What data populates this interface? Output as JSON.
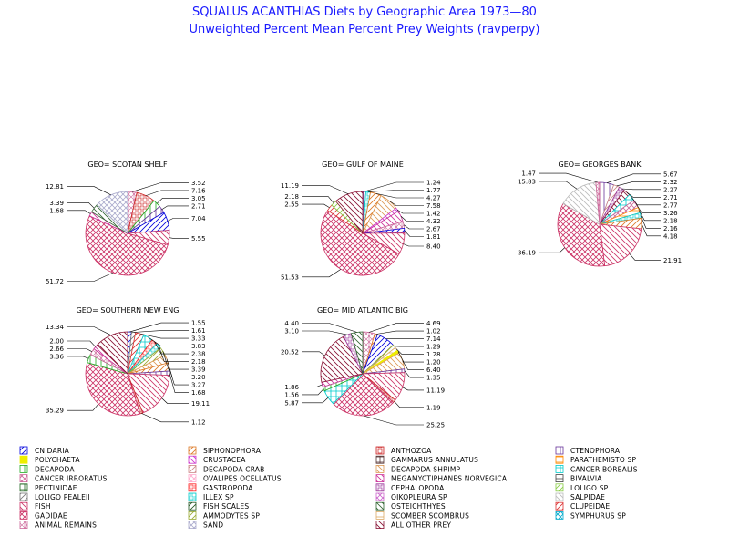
{
  "chart_data": {
    "type": "pie",
    "title": "SQUALUS ACANTHIAS Diets by Geographic Area 1973—80",
    "subtitle": "Unweighted Percent Mean Percent Prey  Weights (ravperpy)",
    "pies": [
      {
        "label": "GEO= SCOTAN SHELF",
        "slices": [
          {
            "cat": "ANIMAL REMAINS",
            "value": 3.52
          },
          {
            "cat": "ANTHOZOA",
            "value": 7.16
          },
          {
            "cat": "DECAPODA",
            "value": 3.05
          },
          {
            "cat": "CTENOPHORA",
            "value": 2.71
          },
          {
            "cat": "CNIDARIA",
            "value": 7.04
          },
          {
            "cat": "FISH",
            "value": 5.55
          },
          {
            "cat": "GADIDAE",
            "value": 51.72
          },
          {
            "cat": "MEGAMYCTIPHANES NORVEGICA",
            "value": 1.68
          },
          {
            "cat": "OSTEICHTHYES",
            "value": 3.39
          },
          {
            "cat": "SAND",
            "value": 12.81
          }
        ],
        "labels": [
          "3.52",
          "7.16",
          "3.05",
          "2.71",
          "7.04",
          "5.55",
          "51.72",
          "1.68",
          "3.39",
          "12.81"
        ]
      },
      {
        "label": "GEO= GULF OF MAINE",
        "slices": [
          {
            "cat": "CTENOPHORA",
            "value": 1.24
          },
          {
            "cat": "ILLEX SP",
            "value": 1.77
          },
          {
            "cat": "SIPHONOPHORA",
            "value": 4.27
          },
          {
            "cat": "DECAPODA SHRIMP",
            "value": 7.58
          },
          {
            "cat": "CRUSTACEA",
            "value": 1.42
          },
          {
            "cat": "MEGAMYCTIPHANES NORVEGICA",
            "value": 4.32
          },
          {
            "cat": "ANIMAL REMAINS",
            "value": 2.67
          },
          {
            "cat": "CNIDARIA",
            "value": 1.81
          },
          {
            "cat": "FISH",
            "value": 8.4
          },
          {
            "cat": "GADIDAE",
            "value": 51.53
          },
          {
            "cat": "CLUPEIDAE",
            "value": 2.55
          },
          {
            "cat": "LOLIGO SP",
            "value": 2.18
          },
          {
            "cat": "ALL OTHER PREY",
            "value": 11.19
          }
        ],
        "labels": [
          "1.24",
          "1.77",
          "4.27",
          "7.58",
          "1.42",
          "4.32",
          "2.67",
          "1.81",
          "8.40",
          "51.53",
          "2.55",
          "2.18",
          "11.19"
        ]
      },
      {
        "label": "GEO= GEORGES BANK",
        "slices": [
          {
            "cat": "CTENOPHORA",
            "value": 5.67
          },
          {
            "cat": "DECAPODA CRAB",
            "value": 2.32
          },
          {
            "cat": "CEPHALOPODA",
            "value": 2.27
          },
          {
            "cat": "ALL OTHER PREY",
            "value": 2.71
          },
          {
            "cat": "CANCER BOREALIS",
            "value": 2.77
          },
          {
            "cat": "CANCER IRRORATUS",
            "value": 3.26
          },
          {
            "cat": "PARATHEMISTO SP",
            "value": 2.18
          },
          {
            "cat": "ILLEX SP",
            "value": 2.16
          },
          {
            "cat": "SIPHONOPHORA",
            "value": 4.18
          },
          {
            "cat": "FISH",
            "value": 21.91
          },
          {
            "cat": "GADIDAE",
            "value": 36.19
          },
          {
            "cat": "SALPIDAE",
            "value": 15.83
          },
          {
            "cat": "ANIMAL REMAINS",
            "value": 1.47
          }
        ],
        "labels": [
          "5.67",
          "2.32",
          "2.27",
          "2.71",
          "2.77",
          "3.26",
          "2.18",
          "2.16",
          "4.18",
          "21.91",
          "36.19",
          "15.83",
          "1.47"
        ]
      },
      {
        "label": "GEO= SOUTHERN NEW ENG",
        "slices": [
          {
            "cat": "CNIDARIA",
            "value": 1.55
          },
          {
            "cat": "LOLIGO PEALEII",
            "value": 1.61
          },
          {
            "cat": "CLUPEIDAE",
            "value": 3.33
          },
          {
            "cat": "CANCER BOREALIS",
            "value": 3.83
          },
          {
            "cat": "GASTROPODA",
            "value": 2.38
          },
          {
            "cat": "ILLEX SP",
            "value": 2.18
          },
          {
            "cat": "AMMODYTES SP",
            "value": 3.39
          },
          {
            "cat": "DECAPODA SHRIMP",
            "value": 3.2
          },
          {
            "cat": "SIPHONOPHORA",
            "value": 3.27
          },
          {
            "cat": "CTENOPHORA",
            "value": 1.68
          },
          {
            "cat": "FISH",
            "value": 19.11
          },
          {
            "cat": "ANTHOZOA",
            "value": 1.12
          },
          {
            "cat": "GADIDAE",
            "value": 35.29
          },
          {
            "cat": "DECAPODA",
            "value": 3.36
          },
          {
            "cat": "ANIMAL REMAINS",
            "value": 2.66
          },
          {
            "cat": "MEGAMYCTIPHANES NORVEGICA",
            "value": 2.0
          },
          {
            "cat": "ALL OTHER PREY",
            "value": 13.34
          }
        ],
        "labels": [
          "1.55",
          "1.61",
          "3.33",
          "3.83",
          "2.38",
          "2.18",
          "3.39",
          "3.20",
          "3.27",
          "1.68",
          "19.11",
          "1.12",
          "35.29",
          "3.36",
          "2.66",
          "2.00",
          "13.34"
        ]
      },
      {
        "label": "GEO= MID ATLANTIC BIG",
        "slices": [
          {
            "cat": "ANIMAL REMAINS",
            "value": 4.69
          },
          {
            "cat": "SIPHONOPHORA",
            "value": 1.02
          },
          {
            "cat": "CNIDARIA",
            "value": 7.14
          },
          {
            "cat": "AMMODYTES SP",
            "value": 1.29
          },
          {
            "cat": "SCOMBER SCOMBRUS",
            "value": 1.28
          },
          {
            "cat": "POLYCHAETA",
            "value": 1.2
          },
          {
            "cat": "DECAPODA SHRIMP",
            "value": 6.4
          },
          {
            "cat": "CTENOPHORA",
            "value": 1.35
          },
          {
            "cat": "FISH",
            "value": 11.19
          },
          {
            "cat": "ANTHOZOA",
            "value": 1.19
          },
          {
            "cat": "GADIDAE",
            "value": 25.25
          },
          {
            "cat": "CANCER BOREALIS",
            "value": 5.87
          },
          {
            "cat": "DECAPODA",
            "value": 1.56
          },
          {
            "cat": "MEGAMYCTIPHANES NORVEGICA",
            "value": 1.86
          },
          {
            "cat": "ALL OTHER PREY",
            "value": 20.52
          },
          {
            "cat": "CEPHALOPODA",
            "value": 3.1
          },
          {
            "cat": "OSTEICHTHYES",
            "value": 4.4
          }
        ],
        "labels": [
          "4.69",
          "1.02",
          "7.14",
          "1.29",
          "1.28",
          "1.20",
          "6.40",
          "1.35",
          "11.19",
          "1.19",
          "25.25",
          "5.87",
          "1.56",
          "1.86",
          "20.52",
          "3.10",
          "4.40"
        ]
      }
    ],
    "legend": [
      {
        "name": "CNIDARIA",
        "color": "#0000dd",
        "pattern": "diag1"
      },
      {
        "name": "SIPHONOPHORA",
        "color": "#dd7722",
        "pattern": "diag1"
      },
      {
        "name": "ANTHOZOA",
        "color": "#cc2222",
        "pattern": "box"
      },
      {
        "name": "CTENOPHORA",
        "color": "#663399",
        "pattern": "vert"
      },
      {
        "name": "POLYCHAETA",
        "color": "#eeee00",
        "pattern": "solid"
      },
      {
        "name": "CRUSTACEA",
        "color": "#cc33cc",
        "pattern": "diag2"
      },
      {
        "name": "GAMMARUS ANNULATUS",
        "color": "#553333",
        "pattern": "cross"
      },
      {
        "name": "PARATHEMISTO SP",
        "color": "#ff8800",
        "pattern": "horiz"
      },
      {
        "name": "DECAPODA",
        "color": "#22aa22",
        "pattern": "vert"
      },
      {
        "name": "DECAPODA CRAB",
        "color": "#cc8888",
        "pattern": "diag1"
      },
      {
        "name": "DECAPODA SHRIMP",
        "color": "#dd9955",
        "pattern": "diag2"
      },
      {
        "name": "CANCER BOREALIS",
        "color": "#00cccc",
        "pattern": "cross"
      },
      {
        "name": "CANCER IRRORATUS",
        "color": "#cc6699",
        "pattern": "xhatch"
      },
      {
        "name": "OVALIPES OCELLATUS",
        "color": "#ffaacc",
        "pattern": "xhatch"
      },
      {
        "name": "MEGAMYCTIPHANES NORVEGICA",
        "color": "#cc3399",
        "pattern": "diag2"
      },
      {
        "name": "BIVALVIA",
        "color": "#444444",
        "pattern": "horiz"
      },
      {
        "name": "PECTINIDAE",
        "color": "#226622",
        "pattern": "cross"
      },
      {
        "name": "GASTROPODA",
        "color": "#ff2222",
        "pattern": "box"
      },
      {
        "name": "CEPHALOPODA",
        "color": "#993399",
        "pattern": "box"
      },
      {
        "name": "LOLIGO SP",
        "color": "#88cc44",
        "pattern": "diag1"
      },
      {
        "name": "LOLIGO PEALEII",
        "color": "#777777",
        "pattern": "diag1"
      },
      {
        "name": "ILLEX SP",
        "color": "#00cccc",
        "pattern": "box"
      },
      {
        "name": "OIKOPLEURA SP",
        "color": "#cc66cc",
        "pattern": "xhatch"
      },
      {
        "name": "SALPIDAE",
        "color": "#bbbbbb",
        "pattern": "diag2"
      },
      {
        "name": "FISH",
        "color": "#cc3366",
        "pattern": "diag2"
      },
      {
        "name": "FISH SCALES",
        "color": "#225522",
        "pattern": "diag1"
      },
      {
        "name": "OSTEICHTHYES",
        "color": "#336633",
        "pattern": "diag2"
      },
      {
        "name": "CLUPEIDAE",
        "color": "#dd3333",
        "pattern": "diag1"
      },
      {
        "name": "GADIDAE",
        "color": "#cc3366",
        "pattern": "xhatch"
      },
      {
        "name": "AMMODYTES SP",
        "color": "#99aa33",
        "pattern": "diag1"
      },
      {
        "name": "SCOMBER SCOMBRUS",
        "color": "#ddaa66",
        "pattern": "horiz"
      },
      {
        "name": "SYMPHURUS SP",
        "color": "#00aacc",
        "pattern": "xhatch"
      },
      {
        "name": "ANIMAL REMAINS",
        "color": "#cc6699",
        "pattern": "xhatch2"
      },
      {
        "name": "SAND",
        "color": "#aaaacc",
        "pattern": "xhatch"
      },
      {
        "name": "ALL OTHER PREY",
        "color": "#881133",
        "pattern": "diag2"
      }
    ]
  }
}
